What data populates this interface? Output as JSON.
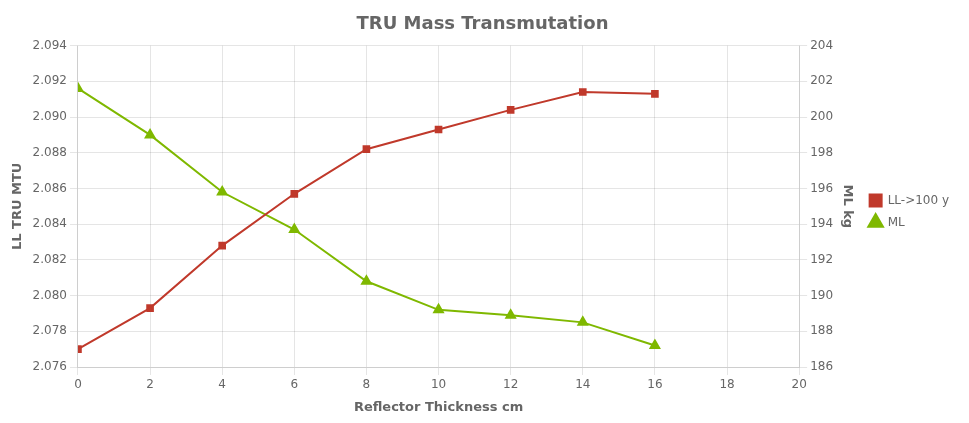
{
  "chart_data": {
    "type": "line",
    "title": "TRU Mass Transmutation",
    "xlabel": "Reflector Thickness cm",
    "ylabel": "LL TRU MTU",
    "y2label": "ML kg",
    "x": [
      0,
      2,
      4,
      6,
      8,
      10,
      12,
      14,
      16
    ],
    "series": [
      {
        "name": "LL->100 y",
        "color": "#c0392b",
        "marker": "square",
        "values": [
          2.077,
          2.0793,
          2.0828,
          2.0857,
          2.0882,
          2.0893,
          2.0904,
          2.0914,
          2.0913
        ]
      },
      {
        "name": "ML",
        "color": "#7fb800",
        "marker": "triangle",
        "axis": "y2",
        "values": [
          201.6,
          199.0,
          195.8,
          193.7,
          190.8,
          189.2,
          188.9,
          188.5,
          187.2
        ]
      }
    ],
    "xlim": [
      0,
      20
    ],
    "xticks": [
      0,
      2,
      4,
      6,
      8,
      10,
      12,
      14,
      16,
      18,
      20
    ],
    "ylim": [
      2.076,
      2.094
    ],
    "yticks": [
      2.076,
      2.078,
      {
        "value": 2.08,
        "label": "2.080"
      },
      2.082,
      2.084,
      2.086,
      2.088,
      {
        "value": 2.09,
        "label": "2.090"
      },
      2.092,
      2.094
    ],
    "y2lim": [
      186,
      204
    ],
    "y2ticks": [
      186,
      188,
      190,
      192,
      194,
      196,
      198,
      200,
      202,
      204
    ],
    "grid": true,
    "legend": "right"
  }
}
